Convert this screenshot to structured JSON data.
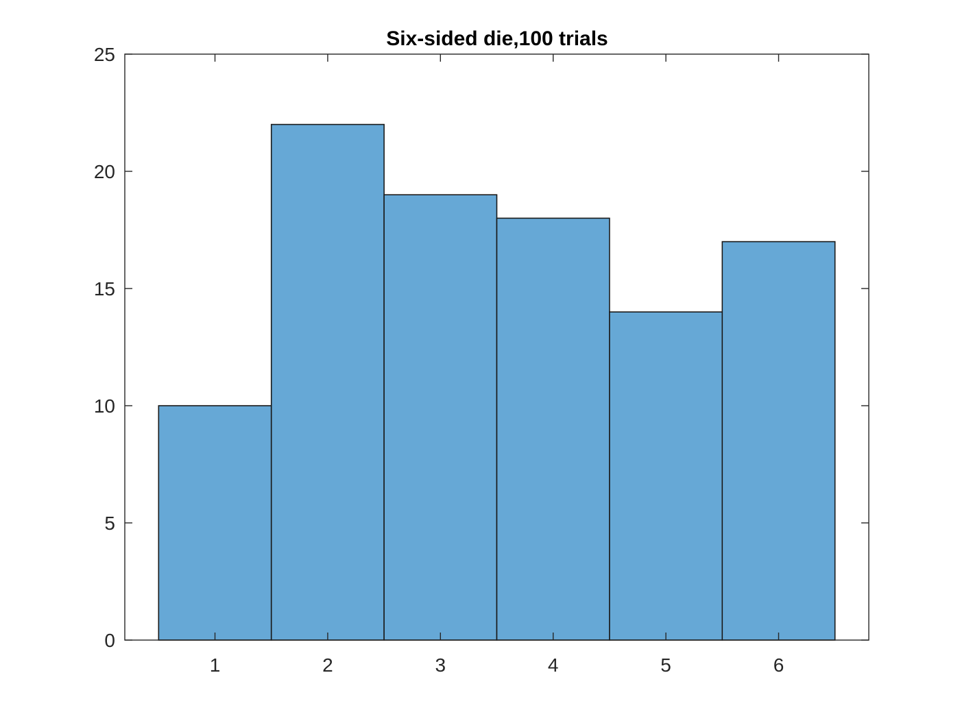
{
  "chart_data": {
    "type": "bar",
    "title": "Six-sided die,100 trials",
    "xlabel": "",
    "ylabel": "",
    "categories": [
      "1",
      "2",
      "3",
      "4",
      "5",
      "6"
    ],
    "values": [
      10,
      22,
      19,
      18,
      14,
      17
    ],
    "bin_edges": [
      0.5,
      1.5,
      2.5,
      3.5,
      4.5,
      5.5,
      6.5
    ],
    "xlim": [
      0.2,
      6.8
    ],
    "ylim": [
      0,
      25
    ],
    "x_ticks": [
      1,
      2,
      3,
      4,
      5,
      6
    ],
    "y_ticks": [
      0,
      5,
      10,
      15,
      20,
      25
    ],
    "grid": false,
    "legend": "none",
    "colors": {
      "bar_fill": "#66a8d6",
      "bar_edge": "#1a1a1a",
      "axes": "#262626"
    }
  }
}
